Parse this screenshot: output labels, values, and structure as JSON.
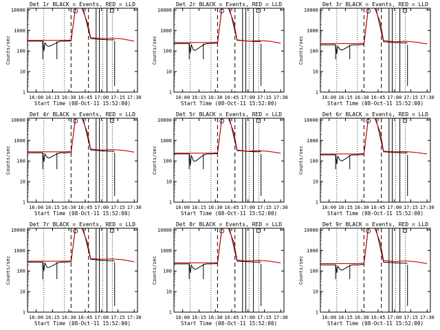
{
  "figure": {
    "xlabel": "Start Time (08-Oct-11 15:52:00)",
    "ylabel": "Counts/sec",
    "xticks": [
      "16:00",
      "16:15",
      "16:30",
      "16:45",
      "17:00",
      "17:15",
      "17:30"
    ],
    "yticks": [
      "1",
      "10",
      "100",
      "1000",
      "10000"
    ]
  },
  "chart_data": [
    {
      "type": "line",
      "title": "Det 1r BLACK = Events, RED = LLD",
      "xlim": [
        "15:52",
        "17:33"
      ],
      "ylim": [
        1,
        12000
      ],
      "yscale": "log",
      "series": [
        {
          "color": "#000000",
          "x": [
            "15:52",
            "16:06",
            "16:07",
            "16:08",
            "16:10",
            "16:12",
            "16:19",
            "16:20",
            "16:22",
            "16:26",
            "16:32",
            "16:36",
            "16:43",
            "16:50",
            "16:55",
            "17:01",
            "17:07",
            "17:12"
          ],
          "values": [
            300,
            300,
            100,
            250,
            180,
            170,
            250,
            270,
            300,
            300,
            310,
            12000,
            12000,
            400,
            380,
            360,
            350,
            350
          ]
        },
        {
          "color": "#cc0000",
          "x": [
            "15:52",
            "16:06",
            "16:15",
            "16:26",
            "16:32",
            "16:36",
            "16:42",
            "16:47",
            "16:50",
            "17:00",
            "17:10",
            "17:20",
            "17:30"
          ],
          "values": [
            330,
            330,
            330,
            330,
            340,
            12000,
            12000,
            2500,
            450,
            400,
            420,
            380,
            300
          ]
        }
      ]
    },
    {
      "type": "line",
      "title": "Det 2r BLACK = Events, RED = LLD",
      "xlim": [
        "15:52",
        "17:33"
      ],
      "ylim": [
        1,
        12000
      ],
      "yscale": "log",
      "series": [
        {
          "color": "#000000",
          "x": [
            "15:52",
            "16:06",
            "16:07",
            "16:08",
            "16:10",
            "16:12",
            "16:19",
            "16:20",
            "16:22",
            "16:26",
            "16:32",
            "16:36",
            "16:43",
            "16:50",
            "16:55",
            "17:01",
            "17:07",
            "17:12"
          ],
          "values": [
            230,
            230,
            80,
            200,
            110,
            110,
            200,
            210,
            230,
            230,
            240,
            12000,
            12000,
            330,
            320,
            300,
            290,
            290
          ]
        },
        {
          "color": "#cc0000",
          "x": [
            "15:52",
            "16:06",
            "16:15",
            "16:26",
            "16:32",
            "16:36",
            "16:42",
            "16:47",
            "16:50",
            "17:00",
            "17:10",
            "17:20",
            "17:30"
          ],
          "values": [
            260,
            260,
            260,
            260,
            270,
            12000,
            12000,
            2500,
            350,
            300,
            320,
            300,
            240
          ]
        }
      ]
    },
    {
      "type": "line",
      "title": "Det 3r BLACK = Events, RED = LLD",
      "xlim": [
        "15:52",
        "17:33"
      ],
      "ylim": [
        1,
        12000
      ],
      "yscale": "log",
      "series": [
        {
          "color": "#000000",
          "x": [
            "15:52",
            "16:06",
            "16:07",
            "16:08",
            "16:10",
            "16:12",
            "16:19",
            "16:20",
            "16:22",
            "16:26",
            "16:32",
            "16:36",
            "16:43",
            "16:50",
            "16:55",
            "17:01",
            "17:07",
            "17:12"
          ],
          "values": [
            200,
            200,
            70,
            170,
            120,
            110,
            180,
            190,
            200,
            200,
            210,
            12000,
            12000,
            280,
            270,
            260,
            250,
            250
          ]
        },
        {
          "color": "#cc0000",
          "x": [
            "15:52",
            "16:06",
            "16:15",
            "16:26",
            "16:32",
            "16:36",
            "16:42",
            "16:47",
            "16:50",
            "17:00",
            "17:10",
            "17:20",
            "17:30"
          ],
          "values": [
            230,
            230,
            230,
            230,
            240,
            12000,
            12000,
            2500,
            320,
            280,
            300,
            270,
            220
          ]
        }
      ]
    },
    {
      "type": "line",
      "title": "Det 4r BLACK = Events, RED = LLD",
      "xlim": [
        "15:52",
        "17:33"
      ],
      "ylim": [
        1,
        12000
      ],
      "yscale": "log",
      "series": [
        {
          "color": "#000000",
          "x": [
            "15:52",
            "16:06",
            "16:07",
            "16:08",
            "16:10",
            "16:12",
            "16:19",
            "16:20",
            "16:22",
            "16:26",
            "16:32",
            "16:36",
            "16:43",
            "16:50",
            "16:55",
            "17:01",
            "17:07",
            "17:12"
          ],
          "values": [
            250,
            250,
            90,
            220,
            150,
            140,
            220,
            230,
            250,
            250,
            260,
            12000,
            12000,
            350,
            330,
            310,
            300,
            300
          ]
        },
        {
          "color": "#cc0000",
          "x": [
            "15:52",
            "16:06",
            "16:15",
            "16:26",
            "16:32",
            "16:36",
            "16:42",
            "16:47",
            "16:50",
            "17:00",
            "17:10",
            "17:20",
            "17:30"
          ],
          "values": [
            280,
            280,
            280,
            280,
            290,
            12000,
            12000,
            2500,
            380,
            340,
            360,
            330,
            270
          ]
        }
      ]
    },
    {
      "type": "line",
      "title": "Det 5r BLACK = Events, RED = LLD",
      "xlim": [
        "15:52",
        "17:33"
      ],
      "ylim": [
        1,
        12000
      ],
      "yscale": "log",
      "series": [
        {
          "color": "#000000",
          "x": [
            "15:52",
            "16:06",
            "16:07",
            "16:08",
            "16:10",
            "16:12",
            "16:19",
            "16:20",
            "16:22",
            "16:26",
            "16:32",
            "16:36",
            "16:43",
            "16:50",
            "16:55",
            "17:01",
            "17:07",
            "17:12"
          ],
          "values": [
            220,
            220,
            60,
            190,
            100,
            100,
            190,
            200,
            220,
            220,
            230,
            12000,
            12000,
            320,
            310,
            290,
            280,
            280
          ]
        },
        {
          "color": "#cc0000",
          "x": [
            "15:52",
            "16:06",
            "16:15",
            "16:26",
            "16:32",
            "16:36",
            "16:42",
            "16:47",
            "16:50",
            "17:00",
            "17:10",
            "17:20",
            "17:30"
          ],
          "values": [
            240,
            240,
            240,
            240,
            250,
            12000,
            12000,
            2500,
            340,
            300,
            320,
            290,
            240
          ]
        }
      ]
    },
    {
      "type": "line",
      "title": "Det 6r BLACK = Events, RED = LLD",
      "xlim": [
        "15:52",
        "17:33"
      ],
      "ylim": [
        1,
        12000
      ],
      "yscale": "log",
      "series": [
        {
          "color": "#000000",
          "x": [
            "15:52",
            "16:06",
            "16:07",
            "16:08",
            "16:10",
            "16:12",
            "16:19",
            "16:20",
            "16:22",
            "16:26",
            "16:32",
            "16:36",
            "16:43",
            "16:50",
            "16:55",
            "17:01",
            "17:07",
            "17:12"
          ],
          "values": [
            200,
            200,
            70,
            170,
            110,
            100,
            180,
            190,
            200,
            200,
            210,
            12000,
            12000,
            280,
            270,
            260,
            250,
            250
          ]
        },
        {
          "color": "#cc0000",
          "x": [
            "15:52",
            "16:06",
            "16:15",
            "16:26",
            "16:32",
            "16:36",
            "16:42",
            "16:47",
            "16:50",
            "17:00",
            "17:10",
            "17:20",
            "17:30"
          ],
          "values": [
            220,
            220,
            220,
            220,
            230,
            12000,
            12000,
            2500,
            300,
            280,
            290,
            260,
            220
          ]
        }
      ]
    },
    {
      "type": "line",
      "title": "Det 7r BLACK = Events, RED = LLD",
      "xlim": [
        "15:52",
        "17:33"
      ],
      "ylim": [
        1,
        12000
      ],
      "yscale": "log",
      "series": [
        {
          "color": "#000000",
          "x": [
            "15:52",
            "16:06",
            "16:07",
            "16:08",
            "16:10",
            "16:12",
            "16:19",
            "16:20",
            "16:22",
            "16:26",
            "16:32",
            "16:36",
            "16:43",
            "16:50",
            "16:55",
            "17:01",
            "17:07",
            "17:12"
          ],
          "values": [
            270,
            270,
            100,
            240,
            150,
            150,
            240,
            250,
            270,
            270,
            280,
            12000,
            12000,
            370,
            350,
            330,
            320,
            320
          ]
        },
        {
          "color": "#cc0000",
          "x": [
            "15:52",
            "16:06",
            "16:15",
            "16:26",
            "16:32",
            "16:36",
            "16:42",
            "16:47",
            "16:50",
            "17:00",
            "17:10",
            "17:20",
            "17:30"
          ],
          "values": [
            300,
            300,
            300,
            300,
            310,
            12000,
            12000,
            2500,
            400,
            370,
            390,
            350,
            280
          ]
        }
      ]
    },
    {
      "type": "line",
      "title": "Det 8r BLACK = Events, RED = LLD",
      "xlim": [
        "15:52",
        "17:33"
      ],
      "ylim": [
        1,
        12000
      ],
      "yscale": "log",
      "series": [
        {
          "color": "#000000",
          "x": [
            "15:52",
            "16:06",
            "16:07",
            "16:08",
            "16:10",
            "16:12",
            "16:19",
            "16:20",
            "16:22",
            "16:26",
            "16:32",
            "16:36",
            "16:43",
            "16:50",
            "16:55",
            "17:01",
            "17:07",
            "17:12"
          ],
          "values": [
            220,
            220,
            80,
            190,
            130,
            120,
            200,
            210,
            220,
            220,
            230,
            12000,
            12000,
            300,
            290,
            280,
            270,
            270
          ]
        },
        {
          "color": "#cc0000",
          "x": [
            "15:52",
            "16:06",
            "16:15",
            "16:26",
            "16:32",
            "16:36",
            "16:42",
            "16:47",
            "16:50",
            "17:00",
            "17:10",
            "17:20",
            "17:30"
          ],
          "values": [
            250,
            250,
            250,
            250,
            260,
            12000,
            12000,
            2500,
            340,
            310,
            330,
            300,
            250
          ]
        }
      ]
    },
    {
      "type": "line",
      "title": "Det 9r BLACK = Events, RED = LLD",
      "xlim": [
        "15:52",
        "17:33"
      ],
      "ylim": [
        1,
        12000
      ],
      "yscale": "log",
      "series": [
        {
          "color": "#000000",
          "x": [
            "15:52",
            "16:06",
            "16:07",
            "16:08",
            "16:10",
            "16:12",
            "16:19",
            "16:20",
            "16:22",
            "16:26",
            "16:32",
            "16:36",
            "16:43",
            "16:50",
            "16:55",
            "17:01",
            "17:07",
            "17:12"
          ],
          "values": [
            200,
            200,
            80,
            170,
            120,
            110,
            180,
            190,
            200,
            200,
            210,
            12000,
            12000,
            270,
            260,
            250,
            240,
            240
          ]
        },
        {
          "color": "#cc0000",
          "x": [
            "15:52",
            "16:06",
            "16:15",
            "16:26",
            "16:32",
            "16:36",
            "16:42",
            "16:47",
            "16:50",
            "17:00",
            "17:10",
            "17:20",
            "17:30"
          ],
          "values": [
            230,
            230,
            230,
            230,
            240,
            12000,
            12000,
            2500,
            320,
            290,
            310,
            280,
            230
          ]
        }
      ]
    }
  ]
}
